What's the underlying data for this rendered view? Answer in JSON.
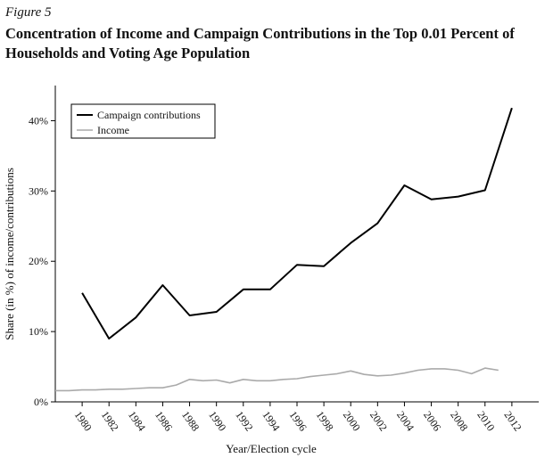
{
  "figure": {
    "label": "Figure 5",
    "title": "Concentration of Income and Campaign Contributions in the Top 0.01 Percent of Households and Voting Age Population"
  },
  "chart_data": {
    "type": "line",
    "title": "Concentration of Income and Campaign Contributions in the Top 0.01 Percent of Households and Voting Age Population",
    "xlabel": "Year/Election cycle",
    "ylabel": "Share (in %) of income/contributions",
    "xlim": [
      1978,
      2014
    ],
    "ylim": [
      0,
      45
    ],
    "x_ticks": [
      1980,
      1982,
      1984,
      1986,
      1988,
      1990,
      1992,
      1994,
      1996,
      1998,
      2000,
      2002,
      2004,
      2006,
      2008,
      2010,
      2012
    ],
    "y_ticks": [
      0,
      10,
      20,
      30,
      40
    ],
    "y_tick_labels": [
      "0%",
      "10%",
      "20%",
      "30%",
      "40%"
    ],
    "grid": false,
    "legend_position": "top-left",
    "series": [
      {
        "name": "Campaign contributions",
        "color": "#000000",
        "x": [
          1980,
          1982,
          1984,
          1986,
          1988,
          1990,
          1992,
          1994,
          1996,
          1998,
          2000,
          2002,
          2004,
          2006,
          2008,
          2010,
          2012
        ],
        "values": [
          15.5,
          9.0,
          12.0,
          16.6,
          12.3,
          12.8,
          16.0,
          16.0,
          19.5,
          19.3,
          22.6,
          25.4,
          30.8,
          28.8,
          29.2,
          30.1,
          41.8
        ]
      },
      {
        "name": "Income",
        "color": "#aaaaaa",
        "x": [
          1978,
          1979,
          1980,
          1981,
          1982,
          1983,
          1984,
          1985,
          1986,
          1987,
          1988,
          1989,
          1990,
          1991,
          1992,
          1993,
          1994,
          1995,
          1996,
          1997,
          1998,
          1999,
          2000,
          2001,
          2002,
          2003,
          2004,
          2005,
          2006,
          2007,
          2008,
          2009,
          2010,
          2011
        ],
        "values": [
          1.6,
          1.6,
          1.7,
          1.7,
          1.8,
          1.8,
          1.9,
          2.0,
          2.0,
          2.4,
          3.2,
          3.0,
          3.1,
          2.7,
          3.2,
          3.0,
          3.0,
          3.2,
          3.3,
          3.6,
          3.8,
          4.0,
          4.4,
          3.9,
          3.7,
          3.8,
          4.1,
          4.5,
          4.7,
          4.7,
          4.5,
          4.0,
          4.8,
          4.5
        ]
      }
    ]
  }
}
